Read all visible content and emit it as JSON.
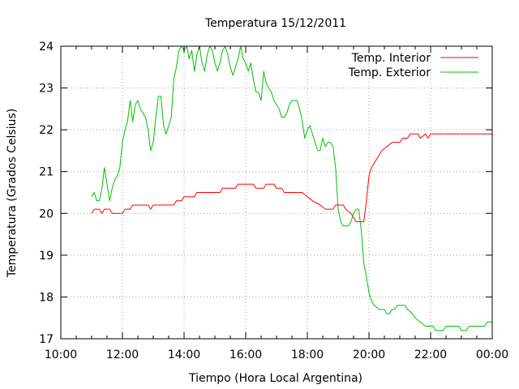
{
  "chart_data": {
    "type": "line",
    "title": "Temperatura 15/12/2011",
    "xlabel": "Tiempo (Hora Local Argentina)",
    "ylabel": "Temperatura (Grados Celsius)",
    "xlim": [
      "10:00",
      "00:00"
    ],
    "ylim": [
      17,
      24
    ],
    "x_ticks": [
      "10:00",
      "12:00",
      "14:00",
      "16:00",
      "18:00",
      "20:00",
      "22:00",
      "00:00"
    ],
    "y_ticks": [
      "17",
      "18",
      "19",
      "20",
      "21",
      "22",
      "23",
      "24"
    ],
    "grid": true,
    "legend_position": "top-right",
    "series": [
      {
        "name": "Temp. Interior",
        "color": "#ff0000",
        "points": [
          [
            "11:00",
            20.0
          ],
          [
            "11:05",
            20.1
          ],
          [
            "11:15",
            20.1
          ],
          [
            "11:20",
            20.0
          ],
          [
            "11:25",
            20.1
          ],
          [
            "11:30",
            20.1
          ],
          [
            "11:35",
            20.1
          ],
          [
            "11:40",
            20.0
          ],
          [
            "12:00",
            20.0
          ],
          [
            "12:05",
            20.1
          ],
          [
            "12:15",
            20.1
          ],
          [
            "12:20",
            20.2
          ],
          [
            "12:40",
            20.2
          ],
          [
            "12:50",
            20.2
          ],
          [
            "12:55",
            20.1
          ],
          [
            "13:00",
            20.2
          ],
          [
            "13:40",
            20.2
          ],
          [
            "13:45",
            20.3
          ],
          [
            "13:55",
            20.3
          ],
          [
            "14:00",
            20.4
          ],
          [
            "14:20",
            20.4
          ],
          [
            "14:25",
            20.5
          ],
          [
            "15:10",
            20.5
          ],
          [
            "15:15",
            20.6
          ],
          [
            "15:40",
            20.6
          ],
          [
            "15:45",
            20.7
          ],
          [
            "16:15",
            20.7
          ],
          [
            "16:20",
            20.6
          ],
          [
            "16:35",
            20.6
          ],
          [
            "16:40",
            20.7
          ],
          [
            "16:55",
            20.7
          ],
          [
            "17:00",
            20.6
          ],
          [
            "17:10",
            20.6
          ],
          [
            "17:15",
            20.5
          ],
          [
            "17:50",
            20.5
          ],
          [
            "18:00",
            20.4
          ],
          [
            "18:10",
            20.3
          ],
          [
            "18:25",
            20.2
          ],
          [
            "18:35",
            20.1
          ],
          [
            "18:50",
            20.1
          ],
          [
            "18:55",
            20.2
          ],
          [
            "19:10",
            20.2
          ],
          [
            "19:15",
            20.1
          ],
          [
            "19:25",
            20.0
          ],
          [
            "19:30",
            19.9
          ],
          [
            "19:35",
            19.8
          ],
          [
            "19:50",
            19.8
          ],
          [
            "19:55",
            20.3
          ],
          [
            "20:00",
            20.9
          ],
          [
            "20:05",
            21.1
          ],
          [
            "20:10",
            21.2
          ],
          [
            "20:15",
            21.3
          ],
          [
            "20:20",
            21.4
          ],
          [
            "20:25",
            21.5
          ],
          [
            "20:35",
            21.6
          ],
          [
            "20:45",
            21.7
          ],
          [
            "21:00",
            21.7
          ],
          [
            "21:05",
            21.8
          ],
          [
            "21:15",
            21.8
          ],
          [
            "21:20",
            21.9
          ],
          [
            "21:35",
            21.9
          ],
          [
            "21:40",
            21.8
          ],
          [
            "21:50",
            21.9
          ],
          [
            "21:55",
            21.8
          ],
          [
            "22:00",
            21.9
          ],
          [
            "23:59",
            21.9
          ]
        ]
      },
      {
        "name": "Temp. Exterior",
        "color": "#00c000",
        "points": [
          [
            "11:00",
            20.4
          ],
          [
            "11:05",
            20.5
          ],
          [
            "11:10",
            20.3
          ],
          [
            "11:15",
            20.3
          ],
          [
            "11:20",
            20.6
          ],
          [
            "11:25",
            21.1
          ],
          [
            "11:30",
            20.7
          ],
          [
            "11:35",
            20.3
          ],
          [
            "11:40",
            20.6
          ],
          [
            "11:45",
            20.8
          ],
          [
            "11:50",
            20.9
          ],
          [
            "11:55",
            21.1
          ],
          [
            "12:00",
            21.7
          ],
          [
            "12:05",
            22.0
          ],
          [
            "12:10",
            22.2
          ],
          [
            "12:15",
            22.7
          ],
          [
            "12:20",
            22.2
          ],
          [
            "12:25",
            22.6
          ],
          [
            "12:30",
            22.7
          ],
          [
            "12:35",
            22.5
          ],
          [
            "12:40",
            22.4
          ],
          [
            "12:45",
            22.3
          ],
          [
            "12:50",
            22.0
          ],
          [
            "12:55",
            21.5
          ],
          [
            "13:00",
            21.7
          ],
          [
            "13:05",
            22.3
          ],
          [
            "13:10",
            22.8
          ],
          [
            "13:15",
            22.8
          ],
          [
            "13:20",
            22.1
          ],
          [
            "13:25",
            21.9
          ],
          [
            "13:30",
            22.1
          ],
          [
            "13:35",
            22.3
          ],
          [
            "13:40",
            23.2
          ],
          [
            "13:45",
            23.5
          ],
          [
            "13:50",
            23.9
          ],
          [
            "13:55",
            24.0
          ],
          [
            "14:00",
            23.9
          ],
          [
            "14:05",
            24.0
          ],
          [
            "14:10",
            23.7
          ],
          [
            "14:15",
            23.9
          ],
          [
            "14:20",
            23.4
          ],
          [
            "14:25",
            23.8
          ],
          [
            "14:30",
            24.0
          ],
          [
            "14:35",
            23.6
          ],
          [
            "14:40",
            23.4
          ],
          [
            "14:45",
            23.8
          ],
          [
            "14:50",
            24.0
          ],
          [
            "14:55",
            23.9
          ],
          [
            "15:00",
            23.6
          ],
          [
            "15:05",
            23.4
          ],
          [
            "15:10",
            23.6
          ],
          [
            "15:15",
            23.9
          ],
          [
            "15:20",
            24.0
          ],
          [
            "15:25",
            23.8
          ],
          [
            "15:30",
            23.5
          ],
          [
            "15:35",
            23.3
          ],
          [
            "15:40",
            23.5
          ],
          [
            "15:45",
            23.7
          ],
          [
            "15:50",
            24.0
          ],
          [
            "15:55",
            23.7
          ],
          [
            "16:00",
            23.6
          ],
          [
            "16:05",
            23.4
          ],
          [
            "16:10",
            23.6
          ],
          [
            "16:15",
            23.2
          ],
          [
            "16:20",
            22.9
          ],
          [
            "16:25",
            22.9
          ],
          [
            "16:30",
            22.7
          ],
          [
            "16:35",
            23.4
          ],
          [
            "16:40",
            23.1
          ],
          [
            "16:45",
            23.0
          ],
          [
            "16:50",
            22.9
          ],
          [
            "16:55",
            22.7
          ],
          [
            "17:00",
            22.6
          ],
          [
            "17:05",
            22.5
          ],
          [
            "17:10",
            22.3
          ],
          [
            "17:15",
            22.3
          ],
          [
            "17:20",
            22.4
          ],
          [
            "17:25",
            22.6
          ],
          [
            "17:30",
            22.7
          ],
          [
            "17:35",
            22.7
          ],
          [
            "17:40",
            22.7
          ],
          [
            "17:45",
            22.5
          ],
          [
            "17:50",
            22.2
          ],
          [
            "17:55",
            21.8
          ],
          [
            "18:00",
            22.0
          ],
          [
            "18:05",
            22.1
          ],
          [
            "18:10",
            21.9
          ],
          [
            "18:15",
            21.7
          ],
          [
            "18:20",
            21.5
          ],
          [
            "18:25",
            21.5
          ],
          [
            "18:30",
            21.8
          ],
          [
            "18:35",
            21.6
          ],
          [
            "18:40",
            21.7
          ],
          [
            "18:45",
            21.7
          ],
          [
            "18:50",
            21.6
          ],
          [
            "18:55",
            21.1
          ],
          [
            "19:00",
            20.1
          ],
          [
            "19:05",
            19.8
          ],
          [
            "19:10",
            19.7
          ],
          [
            "19:15",
            19.7
          ],
          [
            "19:20",
            19.7
          ],
          [
            "19:25",
            19.8
          ],
          [
            "19:30",
            20.0
          ],
          [
            "19:35",
            20.1
          ],
          [
            "19:40",
            20.1
          ],
          [
            "19:45",
            19.6
          ],
          [
            "19:50",
            18.8
          ],
          [
            "19:55",
            18.5
          ],
          [
            "20:00",
            18.1
          ],
          [
            "20:05",
            17.9
          ],
          [
            "20:10",
            17.8
          ],
          [
            "20:20",
            17.7
          ],
          [
            "20:30",
            17.7
          ],
          [
            "20:35",
            17.6
          ],
          [
            "20:40",
            17.6
          ],
          [
            "20:45",
            17.7
          ],
          [
            "20:50",
            17.7
          ],
          [
            "20:55",
            17.8
          ],
          [
            "21:10",
            17.8
          ],
          [
            "21:15",
            17.7
          ],
          [
            "21:25",
            17.6
          ],
          [
            "21:30",
            17.5
          ],
          [
            "21:40",
            17.4
          ],
          [
            "21:50",
            17.3
          ],
          [
            "22:05",
            17.3
          ],
          [
            "22:10",
            17.2
          ],
          [
            "22:25",
            17.2
          ],
          [
            "22:30",
            17.3
          ],
          [
            "22:55",
            17.3
          ],
          [
            "23:00",
            17.2
          ],
          [
            "23:10",
            17.2
          ],
          [
            "23:15",
            17.3
          ],
          [
            "23:45",
            17.3
          ],
          [
            "23:50",
            17.4
          ],
          [
            "23:59",
            17.4
          ]
        ]
      }
    ]
  }
}
